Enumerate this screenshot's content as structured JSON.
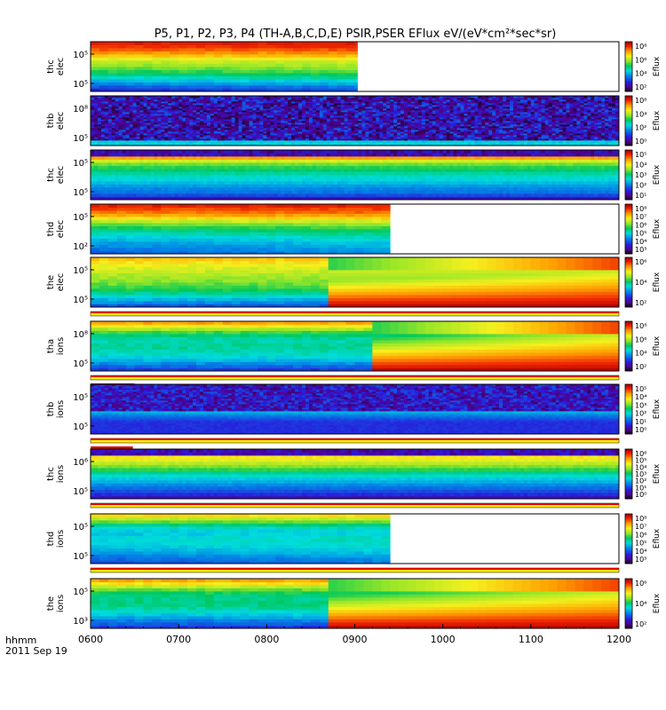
{
  "chart_data": {
    "type": "heatmap",
    "title": "P5, P1, P2, P3, P4 (TH-A,B,C,D,E) PSIR,PSER EFlux eV/(eV*cm²*sec*sr)",
    "time_axis": {
      "start_hhmm": 600,
      "end_hhmm": 1200,
      "tick_labels": [
        "0600",
        "0700",
        "0800",
        "0900",
        "1000",
        "1100",
        "1200"
      ],
      "label_line1": "hhmm",
      "label_line2": "2011 Sep 19"
    },
    "colorbar_label": "Eflux",
    "panels": [
      {
        "probe": "thc",
        "species": "elec",
        "ylabel": "thc\nelec",
        "yticks": [
          "10⁵",
          "10⁵"
        ],
        "cbar_ticks": [
          "10⁸",
          "10⁶",
          "10⁴",
          "10²"
        ],
        "data_end_hhmm": 903,
        "style": "smooth",
        "profile": [
          0.95,
          0.9,
          0.8,
          0.67,
          0.6,
          0.52,
          0.4,
          0.28,
          0.15
        ],
        "coarse": true,
        "has_divider": false
      },
      {
        "probe": "thb",
        "species": "elec",
        "ylabel": "thb\nelec",
        "yticks": [
          "10⁸",
          "10⁵"
        ],
        "cbar_ticks": [
          "10⁸",
          "10⁴",
          "10²",
          "10⁰"
        ],
        "data_end_hhmm": 1200,
        "style": "noisy",
        "profile": [
          0.2,
          0.2,
          0.2,
          0.2,
          0.2,
          0.2,
          0.2,
          0.25,
          0.3
        ],
        "coarse": false,
        "has_divider": false
      },
      {
        "probe": "thc",
        "species": "elec",
        "ylabel": "thc\nelec",
        "yticks": [
          "10⁵",
          "10⁵"
        ],
        "cbar_ticks": [
          "10⁵",
          "10⁴",
          "10³",
          "10²",
          "10¹"
        ],
        "data_end_hhmm": 1200,
        "style": "bands",
        "profile": [
          0.95,
          0.88,
          0.62,
          0.52,
          0.45,
          0.4,
          0.32,
          0.28,
          0.1
        ],
        "coarse": false,
        "has_divider": false
      },
      {
        "probe": "thd",
        "species": "elec",
        "ylabel": "thd\nelec",
        "yticks": [
          "10⁵",
          "10²"
        ],
        "cbar_ticks": [
          "10⁸",
          "10⁷",
          "10⁶",
          "10⁵",
          "10⁴",
          "10³"
        ],
        "data_end_hhmm": 940,
        "style": "smooth",
        "profile": [
          0.95,
          0.88,
          0.78,
          0.62,
          0.5,
          0.42,
          0.35,
          0.3,
          0.25
        ],
        "coarse": true,
        "has_divider": false
      },
      {
        "probe": "the",
        "species": "elec",
        "ylabel": "the\nelec",
        "yticks": [
          "10⁵",
          "10⁵"
        ],
        "cbar_ticks": [
          "10⁶",
          "10⁴",
          "10²"
        ],
        "data_end_hhmm": 1200,
        "style": "injection",
        "inject_hhmm": 873,
        "profile": [
          0.78,
          0.72,
          0.68,
          0.64,
          0.6,
          0.55,
          0.45,
          0.35,
          0.22
        ],
        "coarse": true,
        "has_divider": true
      },
      {
        "probe": "tha",
        "species": "ions",
        "ylabel": "tha\nions",
        "yticks": [
          "10⁸",
          "10⁵"
        ],
        "cbar_ticks": [
          "10⁸",
          "10⁶",
          "10⁴",
          "10²"
        ],
        "data_end_hhmm": 1200,
        "style": "injection",
        "inject_hhmm": 925,
        "profile": [
          0.85,
          0.68,
          0.52,
          0.45,
          0.48,
          0.45,
          0.4,
          0.3,
          0.2
        ],
        "coarse": true,
        "has_divider": true,
        "divider_seg_end_hhmm": 650
      },
      {
        "probe": "thb",
        "species": "ions",
        "ylabel": "thb\nions",
        "yticks": [
          "10⁵",
          "10⁵"
        ],
        "cbar_ticks": [
          "10⁵",
          "10⁴",
          "10³",
          "10²",
          "10¹",
          "10⁰"
        ],
        "data_end_hhmm": 1200,
        "style": "noisy_bands",
        "profile": [
          0.95,
          0.85,
          0.62,
          0.45,
          0.42,
          0.3,
          0.2,
          0.2,
          0.2
        ],
        "coarse": false,
        "has_divider": true,
        "divider_seg_end_hhmm": 648
      },
      {
        "probe": "thc",
        "species": "ions",
        "ylabel": "thc\nions",
        "yticks": [
          "10⁶",
          "10⁵"
        ],
        "cbar_ticks": [
          "10⁶",
          "10⁵",
          "10⁴",
          "10³",
          "10²",
          "10¹",
          "10⁰"
        ],
        "data_end_hhmm": 1200,
        "style": "bands",
        "profile": [
          0.8,
          0.75,
          0.68,
          0.58,
          0.45,
          0.38,
          0.3,
          0.22,
          0.12
        ],
        "coarse": false,
        "has_divider": true
      },
      {
        "probe": "thd",
        "species": "ions",
        "ylabel": "thd\nions",
        "yticks": [
          "10⁵",
          "10⁵"
        ],
        "cbar_ticks": [
          "10⁸",
          "10⁷",
          "10⁶",
          "10⁵",
          "10⁴",
          "10³"
        ],
        "data_end_hhmm": 940,
        "style": "smooth",
        "profile": [
          0.78,
          0.62,
          0.45,
          0.38,
          0.42,
          0.4,
          0.35,
          0.28,
          0.22
        ],
        "coarse": true,
        "has_divider": true
      },
      {
        "probe": "the",
        "species": "ions",
        "ylabel": "the\nions",
        "yticks": [
          "10⁵",
          "10³"
        ],
        "cbar_ticks": [
          "10⁶",
          "10⁴",
          "10²"
        ],
        "data_end_hhmm": 1200,
        "style": "injection",
        "inject_hhmm": 873,
        "profile": [
          0.85,
          0.7,
          0.55,
          0.48,
          0.5,
          0.45,
          0.38,
          0.28,
          0.2
        ],
        "coarse": true,
        "has_divider": false
      }
    ]
  }
}
